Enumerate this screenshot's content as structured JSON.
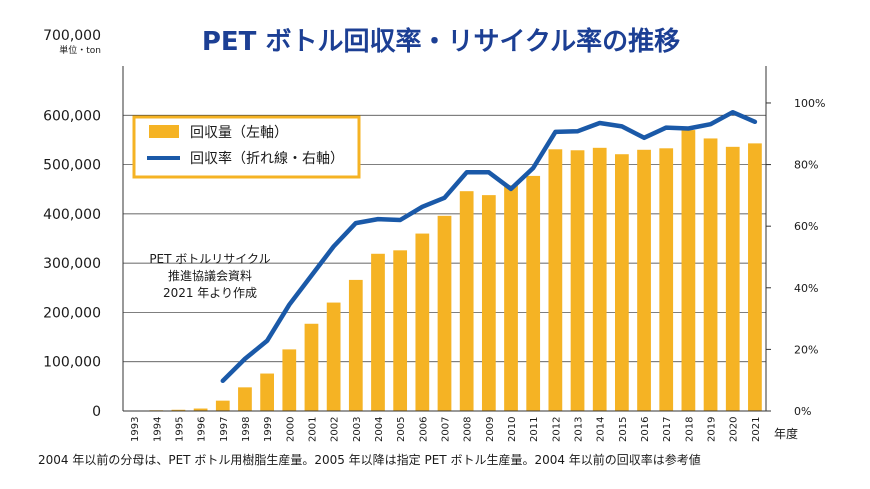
{
  "chart_data": {
    "type": "bar+line",
    "title": "PET ボトル回収率・リサイクル率の推移",
    "left_axis": {
      "top_label": "700,000",
      "unit_label": "単位・ton",
      "ticks": [
        "600,000",
        "500,000",
        "400,000",
        "300,000",
        "200,000",
        "100,000",
        "0"
      ],
      "tick_values": [
        600000,
        500000,
        400000,
        300000,
        200000,
        100000,
        0
      ],
      "ylim": [
        0,
        700000
      ]
    },
    "right_axis": {
      "ticks": [
        "100%",
        "80%",
        "60%",
        "40%",
        "20%",
        "0%"
      ],
      "tick_values": [
        100,
        80,
        60,
        40,
        20,
        0
      ],
      "ylim": [
        0,
        112
      ]
    },
    "x_unit": "年度",
    "categories": [
      "1993",
      "1994",
      "1995",
      "1996",
      "1997",
      "1998",
      "1999",
      "2000",
      "2001",
      "2002",
      "2003",
      "2004",
      "2005",
      "2006",
      "2007",
      "2008",
      "2009",
      "2010",
      "2011",
      "2012",
      "2013",
      "2014",
      "2015",
      "2016",
      "2017",
      "2018",
      "2019",
      "2020",
      "2021"
    ],
    "series": [
      {
        "name": "回収量（左軸）",
        "type": "bar",
        "color": "#f5b324",
        "values": [
          500,
          1500,
          2500,
          5000,
          21000,
          48000,
          76000,
          125000,
          177000,
          220000,
          266000,
          319000,
          326000,
          360000,
          396000,
          446000,
          438000,
          458000,
          477000,
          531000,
          529000,
          534000,
          521000,
          530000,
          533000,
          570000,
          553000,
          536000,
          543000
        ]
      },
      {
        "name": "回収率（折れ線・右軸）",
        "type": "line",
        "color": "#1a59a8",
        "start_index": 4,
        "values": [
          null,
          null,
          null,
          null,
          9.8,
          16.9,
          22.8,
          34.5,
          44.0,
          53.4,
          61.0,
          62.3,
          62.0,
          66.3,
          69.2,
          77.5,
          77.5,
          72.1,
          78.9,
          90.6,
          90.8,
          93.5,
          92.4,
          88.7,
          92.0,
          91.7,
          93.1,
          97.0,
          93.9
        ]
      }
    ],
    "annotation": [
      "PET ボトルリサイクル",
      "推進協議会資料",
      "2021 年より作成"
    ],
    "footnote": "2004 年以前の分母は、PET ボトル用樹脂生産量。2005 年以降は指定 PET ボトル生産量。2004 年以前の回収率は参考値"
  },
  "colors": {
    "title": "#1c3f94",
    "bar": "#f5b324",
    "line": "#1a59a8",
    "legend_border": "#f5b324",
    "grid": "#333333"
  }
}
